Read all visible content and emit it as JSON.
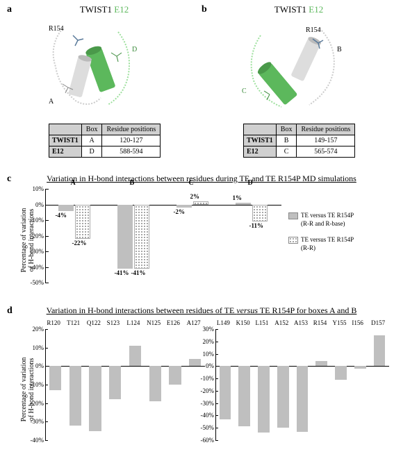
{
  "colors": {
    "twist1": "#000000",
    "e12": "#5cb85c",
    "bar_solid": "#bfbfbf",
    "bar_dotted_bg": "#ffffff",
    "bar_dotted_dot": "#888888",
    "table_header_bg": "#d0d0d0",
    "axis": "#000000"
  },
  "panelA": {
    "label": "a",
    "title_twist1": "TWIST1",
    "title_e12": "E12",
    "residue_label": "R154",
    "chain_labels": {
      "twist": "A",
      "e12": "D"
    },
    "table": {
      "columns": [
        "Box",
        "Residue positions"
      ],
      "rows": [
        {
          "name": "TWIST1",
          "box": "A",
          "pos": "120-127"
        },
        {
          "name": "E12",
          "box": "D",
          "pos": "588-594"
        }
      ]
    }
  },
  "panelB": {
    "label": "b",
    "title_twist1": "TWIST1",
    "title_e12": "E12",
    "residue_label": "R154",
    "chain_labels": {
      "twist": "B",
      "e12": "C"
    },
    "table": {
      "columns": [
        "Box",
        "Residue positions"
      ],
      "rows": [
        {
          "name": "TWIST1",
          "box": "B",
          "pos": "149-157"
        },
        {
          "name": "E12",
          "box": "C",
          "pos": "565-574"
        }
      ]
    }
  },
  "panelC": {
    "label": "c",
    "title": "Variation in H-bond interactions between residues during TE and TE R154P MD simulations",
    "ylabel": "Percentage of variation\nof H-bond interactions",
    "ytick_min": -50,
    "ytick_max": 10,
    "ytick_step": 10,
    "ytick_suffix": "%",
    "categories": [
      "A",
      "B",
      "C",
      "D"
    ],
    "series": [
      {
        "name": "TE versus TE R154P\n(R-R and R-base)",
        "style": "solid",
        "color": "#bfbfbf",
        "values": [
          -4,
          -41,
          -2,
          1
        ],
        "labels": [
          "-4%",
          "-41%",
          "-2%",
          "1%"
        ]
      },
      {
        "name": "TE versus TE R154P\n(R-R)",
        "style": "dotted",
        "values": [
          -22,
          -41,
          2,
          -11
        ],
        "labels": [
          "-22%",
          "-41%",
          "2%",
          "-11%"
        ]
      }
    ],
    "legend": [
      "TE versus TE R154P (R-R and R-base)",
      "TE versus TE R154P (R-R)"
    ]
  },
  "panelD": {
    "label": "d",
    "title": "Variation in H-bond interactions between residues of TE versus TE R154P for boxes A and B",
    "ylabel": "Percentage of variation\nof H-bond interactions",
    "title_italic_word": "versus",
    "chartA": {
      "ytick_min": -40,
      "ytick_max": 20,
      "ytick_step": 10,
      "ytick_suffix": "%",
      "residues": [
        "R120",
        "T121",
        "Q122",
        "S123",
        "L124",
        "N125",
        "E126",
        "A127"
      ],
      "values": [
        -13,
        -32,
        -35,
        -18,
        11,
        -19,
        -10,
        4
      ],
      "bar_color": "#bfbfbf"
    },
    "chartB": {
      "ytick_min": -60,
      "ytick_max": 30,
      "ytick_step": 10,
      "ytick_suffix": "%",
      "residues": [
        "L149",
        "K150",
        "L151",
        "A152",
        "A153",
        "R154",
        "Y155",
        "I156",
        "D157"
      ],
      "values": [
        -43,
        -49,
        -54,
        -50,
        -53,
        4,
        -11,
        -2,
        25
      ],
      "bar_color": "#bfbfbf"
    }
  }
}
